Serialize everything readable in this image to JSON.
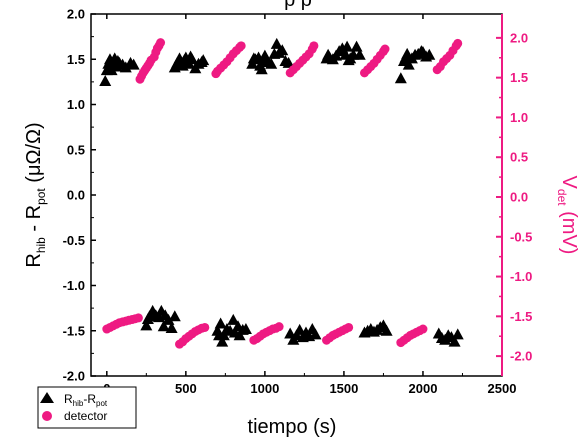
{
  "chart_data": {
    "type": "scatter",
    "title": "",
    "title_visible_fragment": "p        p",
    "xlabel": "tiempo (s)",
    "ylabel_left": {
      "base": "R",
      "sub1": "hib",
      "mid": " - R",
      "sub2": "pot",
      "unit": " (μΩ/Ω)"
    },
    "ylabel_right": {
      "base": "V",
      "sub": "det",
      "unit": " (mV)"
    },
    "xlim": [
      -100,
      2500
    ],
    "ylim_left": [
      -2.0,
      2.0
    ],
    "ylim_right": [
      -2.25,
      2.3
    ],
    "x_ticks": [
      0,
      500,
      1000,
      1500,
      2000,
      2500
    ],
    "y_ticks_left": [
      -2.0,
      -1.5,
      -1.0,
      -0.5,
      0.0,
      0.5,
      1.0,
      1.5,
      2.0
    ],
    "y_ticks_right": [
      -2.0,
      -1.5,
      -1.0,
      -0.5,
      0.0,
      0.5,
      1.0,
      1.5,
      2.0
    ],
    "y_tick_labels_left": [
      "-2.0",
      "-1.5",
      "-1.0",
      "-0.5",
      "0.0",
      "0.5",
      "1.0",
      "1.5",
      "2.0"
    ],
    "y_tick_labels_right": [
      "-2.0",
      "-1.5",
      "-1.0",
      "-0.5",
      "0.0",
      "0.5",
      "1.0",
      "1.5",
      "2.0"
    ],
    "x_tick_labels": [
      "0",
      "500",
      "1000",
      "1500",
      "2000",
      "2500"
    ],
    "colors": {
      "rhib": "#000000",
      "detector": "#ee1a82"
    },
    "legend": {
      "placement": "bottom-left",
      "entries": [
        {
          "label_base": "R",
          "label_sub1": "hib",
          "label_mid": "-R",
          "label_sub2": "pot",
          "marker": "triangle"
        },
        {
          "label": "detector",
          "marker": "circle"
        }
      ]
    },
    "series": [
      {
        "key": "rhib_pos",
        "axis": "left",
        "marker": "triangle",
        "points": [
          [
            -10,
            1.26
          ],
          [
            0,
            1.38
          ],
          [
            10,
            1.45
          ],
          [
            20,
            1.5
          ],
          [
            30,
            1.38
          ],
          [
            40,
            1.45
          ],
          [
            50,
            1.51
          ],
          [
            60,
            1.42
          ],
          [
            70,
            1.48
          ],
          [
            80,
            1.46
          ],
          [
            100,
            1.44
          ],
          [
            120,
            1.41
          ],
          [
            150,
            1.46
          ],
          [
            170,
            1.44
          ],
          [
            430,
            1.41
          ],
          [
            445,
            1.46
          ],
          [
            460,
            1.51
          ],
          [
            470,
            1.44
          ],
          [
            480,
            1.43
          ],
          [
            490,
            1.49
          ],
          [
            500,
            1.52
          ],
          [
            510,
            1.47
          ],
          [
            520,
            1.45
          ],
          [
            530,
            1.53
          ],
          [
            540,
            1.5
          ],
          [
            560,
            1.4
          ],
          [
            580,
            1.45
          ],
          [
            600,
            1.47
          ],
          [
            610,
            1.49
          ],
          [
            920,
            1.45
          ],
          [
            930,
            1.51
          ],
          [
            940,
            1.5
          ],
          [
            960,
            1.52
          ],
          [
            970,
            1.43
          ],
          [
            980,
            1.39
          ],
          [
            990,
            1.49
          ],
          [
            1000,
            1.54
          ],
          [
            1020,
            1.47
          ],
          [
            1040,
            1.45
          ],
          [
            1060,
            1.56
          ],
          [
            1075,
            1.67
          ],
          [
            1090,
            1.57
          ],
          [
            1110,
            1.6
          ],
          [
            1130,
            1.48
          ],
          [
            1150,
            1.46
          ],
          [
            1390,
            1.51
          ],
          [
            1400,
            1.55
          ],
          [
            1410,
            1.52
          ],
          [
            1430,
            1.5
          ],
          [
            1450,
            1.54
          ],
          [
            1470,
            1.59
          ],
          [
            1490,
            1.62
          ],
          [
            1510,
            1.55
          ],
          [
            1520,
            1.64
          ],
          [
            1530,
            1.49
          ],
          [
            1540,
            1.51
          ],
          [
            1560,
            1.55
          ],
          [
            1580,
            1.64
          ],
          [
            1600,
            1.55
          ],
          [
            1860,
            1.29
          ],
          [
            1880,
            1.48
          ],
          [
            1890,
            1.52
          ],
          [
            1900,
            1.56
          ],
          [
            1910,
            1.44
          ],
          [
            1930,
            1.51
          ],
          [
            1950,
            1.55
          ],
          [
            1970,
            1.56
          ],
          [
            1990,
            1.59
          ],
          [
            2000,
            1.58
          ],
          [
            2020,
            1.53
          ],
          [
            2040,
            1.55
          ]
        ]
      },
      {
        "key": "rhib_neg",
        "axis": "left",
        "marker": "triangle",
        "points": [
          [
            250,
            -1.44
          ],
          [
            260,
            -1.37
          ],
          [
            270,
            -1.34
          ],
          [
            290,
            -1.28
          ],
          [
            310,
            -1.33
          ],
          [
            330,
            -1.35
          ],
          [
            345,
            -1.28
          ],
          [
            360,
            -1.45
          ],
          [
            370,
            -1.33
          ],
          [
            390,
            -1.38
          ],
          [
            410,
            -1.47
          ],
          [
            430,
            -1.34
          ],
          [
            700,
            -1.5
          ],
          [
            710,
            -1.55
          ],
          [
            720,
            -1.42
          ],
          [
            730,
            -1.62
          ],
          [
            740,
            -1.55
          ],
          [
            760,
            -1.48
          ],
          [
            780,
            -1.5
          ],
          [
            800,
            -1.38
          ],
          [
            810,
            -1.52
          ],
          [
            830,
            -1.45
          ],
          [
            840,
            -1.55
          ],
          [
            860,
            -1.49
          ],
          [
            880,
            -1.48
          ],
          [
            1160,
            -1.53
          ],
          [
            1180,
            -1.6
          ],
          [
            1200,
            -1.55
          ],
          [
            1220,
            -1.49
          ],
          [
            1240,
            -1.57
          ],
          [
            1260,
            -1.52
          ],
          [
            1280,
            -1.56
          ],
          [
            1300,
            -1.48
          ],
          [
            1320,
            -1.54
          ],
          [
            1630,
            -1.52
          ],
          [
            1650,
            -1.5
          ],
          [
            1670,
            -1.48
          ],
          [
            1690,
            -1.51
          ],
          [
            1710,
            -1.49
          ],
          [
            1730,
            -1.46
          ],
          [
            1750,
            -1.44
          ],
          [
            1770,
            -1.5
          ],
          [
            2100,
            -1.53
          ],
          [
            2120,
            -1.58
          ],
          [
            2140,
            -1.6
          ],
          [
            2160,
            -1.55
          ],
          [
            2180,
            -1.57
          ],
          [
            2200,
            -1.62
          ],
          [
            2220,
            -1.54
          ]
        ]
      },
      {
        "key": "detector_pos",
        "axis": "right",
        "marker": "circle",
        "points": [
          [
            210,
            1.48
          ],
          [
            220,
            1.52
          ],
          [
            230,
            1.56
          ],
          [
            240,
            1.59
          ],
          [
            250,
            1.62
          ],
          [
            260,
            1.65
          ],
          [
            270,
            1.68
          ],
          [
            280,
            1.72
          ],
          [
            300,
            1.76
          ],
          [
            310,
            1.82
          ],
          [
            320,
            1.87
          ],
          [
            330,
            1.9
          ],
          [
            340,
            1.94
          ],
          [
            690,
            1.55
          ],
          [
            700,
            1.58
          ],
          [
            720,
            1.62
          ],
          [
            740,
            1.66
          ],
          [
            760,
            1.7
          ],
          [
            780,
            1.75
          ],
          [
            800,
            1.8
          ],
          [
            820,
            1.84
          ],
          [
            840,
            1.88
          ],
          [
            850,
            1.9
          ],
          [
            1160,
            1.56
          ],
          [
            1180,
            1.6
          ],
          [
            1200,
            1.64
          ],
          [
            1220,
            1.68
          ],
          [
            1240,
            1.72
          ],
          [
            1260,
            1.76
          ],
          [
            1280,
            1.8
          ],
          [
            1300,
            1.86
          ],
          [
            1310,
            1.9
          ],
          [
            1630,
            1.56
          ],
          [
            1650,
            1.6
          ],
          [
            1670,
            1.64
          ],
          [
            1690,
            1.68
          ],
          [
            1710,
            1.73
          ],
          [
            1730,
            1.78
          ],
          [
            1750,
            1.83
          ],
          [
            1760,
            1.86
          ],
          [
            2090,
            1.6
          ],
          [
            2110,
            1.64
          ],
          [
            2130,
            1.7
          ],
          [
            2150,
            1.74
          ],
          [
            2170,
            1.78
          ],
          [
            2190,
            1.84
          ],
          [
            2210,
            1.9
          ],
          [
            2220,
            1.93
          ]
        ]
      },
      {
        "key": "detector_neg",
        "axis": "right",
        "marker": "circle",
        "points": [
          [
            0,
            -1.66
          ],
          [
            20,
            -1.64
          ],
          [
            40,
            -1.62
          ],
          [
            60,
            -1.6
          ],
          [
            80,
            -1.58
          ],
          [
            100,
            -1.57
          ],
          [
            120,
            -1.56
          ],
          [
            140,
            -1.55
          ],
          [
            160,
            -1.54
          ],
          [
            180,
            -1.53
          ],
          [
            200,
            -1.52
          ],
          [
            460,
            -1.85
          ],
          [
            480,
            -1.82
          ],
          [
            500,
            -1.78
          ],
          [
            520,
            -1.75
          ],
          [
            540,
            -1.72
          ],
          [
            560,
            -1.69
          ],
          [
            580,
            -1.67
          ],
          [
            600,
            -1.65
          ],
          [
            620,
            -1.64
          ],
          [
            930,
            -1.8
          ],
          [
            950,
            -1.78
          ],
          [
            970,
            -1.75
          ],
          [
            990,
            -1.72
          ],
          [
            1010,
            -1.7
          ],
          [
            1030,
            -1.68
          ],
          [
            1050,
            -1.66
          ],
          [
            1070,
            -1.65
          ],
          [
            1090,
            -1.63
          ],
          [
            1390,
            -1.8
          ],
          [
            1410,
            -1.77
          ],
          [
            1430,
            -1.74
          ],
          [
            1450,
            -1.72
          ],
          [
            1470,
            -1.7
          ],
          [
            1490,
            -1.68
          ],
          [
            1510,
            -1.66
          ],
          [
            1530,
            -1.64
          ],
          [
            1860,
            -1.83
          ],
          [
            1880,
            -1.8
          ],
          [
            1900,
            -1.77
          ],
          [
            1920,
            -1.74
          ],
          [
            1940,
            -1.72
          ],
          [
            1960,
            -1.7
          ],
          [
            1980,
            -1.68
          ],
          [
            2000,
            -1.66
          ]
        ]
      }
    ]
  }
}
